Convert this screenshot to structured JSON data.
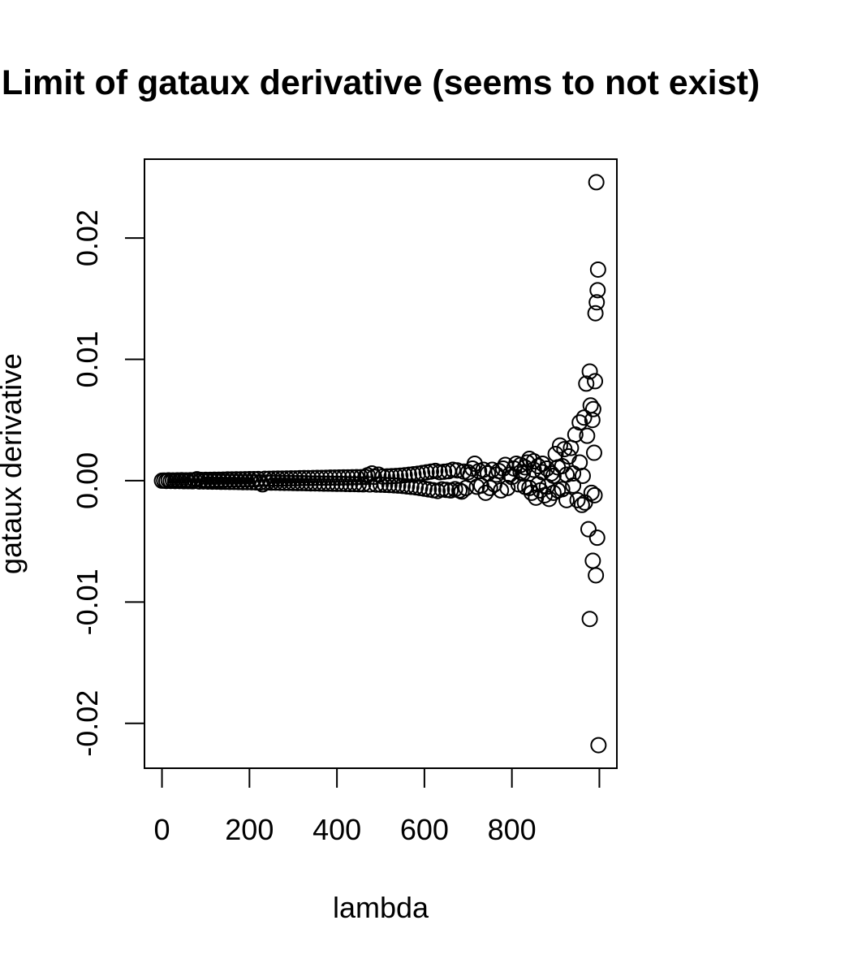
{
  "chart_data": {
    "type": "scatter",
    "title": "Limit of gataux derivative (seems to not exist)",
    "xlabel": "lambda",
    "ylabel": "gataux derivative",
    "xlim": [
      -40,
      1040
    ],
    "ylim": [
      -0.0237,
      0.0265
    ],
    "x_ticks": [
      {
        "value": 0,
        "label": "0"
      },
      {
        "value": 200,
        "label": "200"
      },
      {
        "value": 400,
        "label": "400"
      },
      {
        "value": 600,
        "label": "600"
      },
      {
        "value": 800,
        "label": "800"
      },
      {
        "value": 1000,
        "label": ""
      }
    ],
    "y_ticks": [
      {
        "value": -0.02,
        "label": "-0.02"
      },
      {
        "value": -0.01,
        "label": "-0.01"
      },
      {
        "value": 0,
        "label": "0.00"
      },
      {
        "value": 0.01,
        "label": "0.01"
      },
      {
        "value": 0.02,
        "label": "0.02"
      }
    ],
    "grid": false,
    "marker": "open-circle",
    "color": "#000000",
    "points": [
      [
        0,
        0.0
      ],
      [
        5,
        1e-05
      ],
      [
        10,
        -2e-05
      ],
      [
        15,
        3e-05
      ],
      [
        20,
        -2e-05
      ],
      [
        25,
        2e-05
      ],
      [
        30,
        -3e-05
      ],
      [
        35,
        3e-05
      ],
      [
        40,
        -3e-05
      ],
      [
        45,
        4e-05
      ],
      [
        50,
        -4e-05
      ],
      [
        55,
        3e-05
      ],
      [
        60,
        -4e-05
      ],
      [
        65,
        4e-05
      ],
      [
        70,
        -5e-05
      ],
      [
        75,
        5e-05
      ],
      [
        80,
        0.00012
      ],
      [
        85,
        -6e-05
      ],
      [
        90,
        6e-05
      ],
      [
        95,
        -6e-05
      ],
      [
        100,
        7e-05
      ],
      [
        105,
        -7e-05
      ],
      [
        110,
        7e-05
      ],
      [
        115,
        -8e-05
      ],
      [
        120,
        8e-05
      ],
      [
        125,
        -8e-05
      ],
      [
        130,
        8e-05
      ],
      [
        135,
        -9e-05
      ],
      [
        140,
        9e-05
      ],
      [
        145,
        -9e-05
      ],
      [
        150,
        0.0001
      ],
      [
        155,
        -0.0001
      ],
      [
        160,
        0.0001
      ],
      [
        165,
        -0.0001
      ],
      [
        170,
        0.00011
      ],
      [
        175,
        -0.00011
      ],
      [
        180,
        0.00011
      ],
      [
        185,
        -0.00012
      ],
      [
        190,
        0.00012
      ],
      [
        195,
        -0.00012
      ],
      [
        200,
        0.00013
      ],
      [
        205,
        -0.00013
      ],
      [
        210,
        0.00013
      ],
      [
        215,
        -0.00014
      ],
      [
        220,
        0.00014
      ],
      [
        225,
        -0.00014
      ],
      [
        230,
        -0.0003
      ],
      [
        235,
        0.00015
      ],
      [
        240,
        -0.00015
      ],
      [
        245,
        0.00015
      ],
      [
        250,
        -0.00016
      ],
      [
        255,
        0.00016
      ],
      [
        260,
        -0.00016
      ],
      [
        265,
        0.00017
      ],
      [
        270,
        -0.00017
      ],
      [
        275,
        0.00017
      ],
      [
        280,
        -0.00018
      ],
      [
        285,
        0.00018
      ],
      [
        290,
        -0.00018
      ],
      [
        295,
        0.00019
      ],
      [
        300,
        -0.00019
      ],
      [
        305,
        0.00019
      ],
      [
        310,
        -0.0002
      ],
      [
        315,
        0.0002
      ],
      [
        320,
        -0.0002
      ],
      [
        325,
        0.00021
      ],
      [
        330,
        -0.00021
      ],
      [
        335,
        0.00021
      ],
      [
        340,
        -0.00022
      ],
      [
        345,
        0.00022
      ],
      [
        350,
        -0.00022
      ],
      [
        355,
        0.00023
      ],
      [
        360,
        -0.00023
      ],
      [
        365,
        0.00023
      ],
      [
        370,
        -0.00024
      ],
      [
        375,
        0.00024
      ],
      [
        380,
        -0.00024
      ],
      [
        385,
        0.00025
      ],
      [
        390,
        -0.00025
      ],
      [
        395,
        0.00025
      ],
      [
        400,
        -0.00026
      ],
      [
        405,
        0.00026
      ],
      [
        410,
        -0.00026
      ],
      [
        415,
        0.00027
      ],
      [
        420,
        -0.00027
      ],
      [
        425,
        0.00027
      ],
      [
        430,
        -0.00028
      ],
      [
        435,
        0.00028
      ],
      [
        440,
        -0.00028
      ],
      [
        445,
        0.00029
      ],
      [
        450,
        -0.00029
      ],
      [
        455,
        0.00029
      ],
      [
        460,
        -0.0003
      ],
      [
        465,
        0.0003
      ],
      [
        470,
        0.00045
      ],
      [
        475,
        -0.00031
      ],
      [
        480,
        0.0006
      ],
      [
        485,
        0.00032
      ],
      [
        490,
        -0.00032
      ],
      [
        495,
        0.0005
      ],
      [
        500,
        -0.00033
      ],
      [
        505,
        0.00034
      ],
      [
        510,
        -0.00034
      ],
      [
        515,
        0.00035
      ],
      [
        520,
        -0.00036
      ],
      [
        525,
        0.00037
      ],
      [
        530,
        -0.00038
      ],
      [
        535,
        0.00039
      ],
      [
        540,
        -0.0004
      ],
      [
        545,
        0.00041
      ],
      [
        550,
        -0.00043
      ],
      [
        555,
        0.00045
      ],
      [
        560,
        -0.00047
      ],
      [
        565,
        0.00049
      ],
      [
        570,
        -0.00051
      ],
      [
        575,
        0.00053
      ],
      [
        580,
        -0.00055
      ],
      [
        585,
        0.00057
      ],
      [
        590,
        -0.0006
      ],
      [
        595,
        0.00063
      ],
      [
        600,
        -0.00066
      ],
      [
        605,
        0.00069
      ],
      [
        610,
        -0.00072
      ],
      [
        615,
        0.00075
      ],
      [
        620,
        -0.00078
      ],
      [
        625,
        0.00081
      ],
      [
        630,
        -0.00085
      ],
      [
        635,
        0.0007
      ],
      [
        640,
        -0.00072
      ],
      [
        645,
        0.00074
      ],
      [
        650,
        -0.00076
      ],
      [
        655,
        0.00078
      ],
      [
        660,
        -0.0008
      ],
      [
        665,
        0.0009
      ],
      [
        670,
        -0.0007
      ],
      [
        675,
        0.00085
      ],
      [
        680,
        -0.0008
      ],
      [
        685,
        -0.0009
      ],
      [
        690,
        0.00075
      ],
      [
        695,
        -0.0006
      ],
      [
        700,
        0.0007
      ],
      [
        705,
        0.0005
      ],
      [
        710,
        0.001
      ],
      [
        715,
        0.0014
      ],
      [
        720,
        -0.0005
      ],
      [
        725,
        0.0008
      ],
      [
        730,
        -0.0004
      ],
      [
        735,
        0.0009
      ],
      [
        740,
        -0.001
      ],
      [
        745,
        0.0006
      ],
      [
        750,
        -0.0006
      ],
      [
        755,
        0.0009
      ],
      [
        760,
        -0.0003
      ],
      [
        765,
        0.0005
      ],
      [
        770,
        0.0008
      ],
      [
        775,
        -0.0008
      ],
      [
        780,
        0.001
      ],
      [
        785,
        0.0013
      ],
      [
        790,
        -0.0006
      ],
      [
        795,
        0.0005
      ],
      [
        800,
        0.0003
      ],
      [
        805,
        0.001
      ],
      [
        810,
        0.0014
      ],
      [
        815,
        -0.0003
      ],
      [
        820,
        0.0013
      ],
      [
        825,
        0.0006
      ],
      [
        830,
        -0.0005
      ],
      [
        835,
        0.0015
      ],
      [
        840,
        0.0018
      ],
      [
        845,
        -0.001
      ],
      [
        850,
        0.0016
      ],
      [
        855,
        -0.0014
      ],
      [
        860,
        0.0012
      ],
      [
        865,
        -0.0008
      ],
      [
        870,
        0.0014
      ],
      [
        875,
        -0.0012
      ],
      [
        880,
        0.001
      ],
      [
        885,
        -0.0015
      ],
      [
        890,
        0.0006
      ],
      [
        895,
        -0.001
      ],
      [
        900,
        0.0022
      ],
      [
        905,
        -0.0008
      ],
      [
        910,
        0.0029
      ],
      [
        915,
        0.0012
      ],
      [
        920,
        0.0026
      ],
      [
        925,
        -0.0016
      ],
      [
        930,
        0.002
      ],
      [
        935,
        0.0027
      ],
      [
        940,
        0.0006
      ],
      [
        945,
        0.0038
      ],
      [
        950,
        -0.0016
      ],
      [
        955,
        0.0048
      ],
      [
        960,
        -0.002
      ],
      [
        962,
        0.0004
      ],
      [
        965,
        0.0052
      ],
      [
        967,
        -0.0018
      ],
      [
        970,
        0.008
      ],
      [
        972,
        0.0037
      ],
      [
        975,
        -0.004
      ],
      [
        978,
        0.009
      ],
      [
        980,
        0.0062
      ],
      [
        982,
        -0.001
      ],
      [
        984,
        0.005
      ],
      [
        985,
        -0.0066
      ],
      [
        986,
        0.0059
      ],
      [
        988,
        0.0023
      ],
      [
        989,
        -0.0012
      ],
      [
        990,
        0.0082
      ],
      [
        991,
        0.0138
      ],
      [
        992,
        -0.0078
      ],
      [
        993,
        0.0246
      ],
      [
        994,
        0.0147
      ],
      [
        995,
        -0.0047
      ],
      [
        996,
        0.0157
      ],
      [
        997,
        0.0174
      ],
      [
        998,
        -0.0218
      ],
      [
        978,
        -0.0114
      ],
      [
        955,
        0.0015
      ],
      [
        940,
        -0.0004
      ],
      [
        925,
        0.0005
      ],
      [
        915,
        -0.0007
      ],
      [
        905,
        0.0011
      ],
      [
        895,
        0.0004
      ],
      [
        880,
        -0.0005
      ],
      [
        870,
        0.0007
      ],
      [
        860,
        -0.0003
      ],
      [
        850,
        0.0009
      ],
      [
        840,
        -0.0006
      ],
      [
        830,
        0.0011
      ],
      [
        820,
        0.0007
      ]
    ]
  }
}
